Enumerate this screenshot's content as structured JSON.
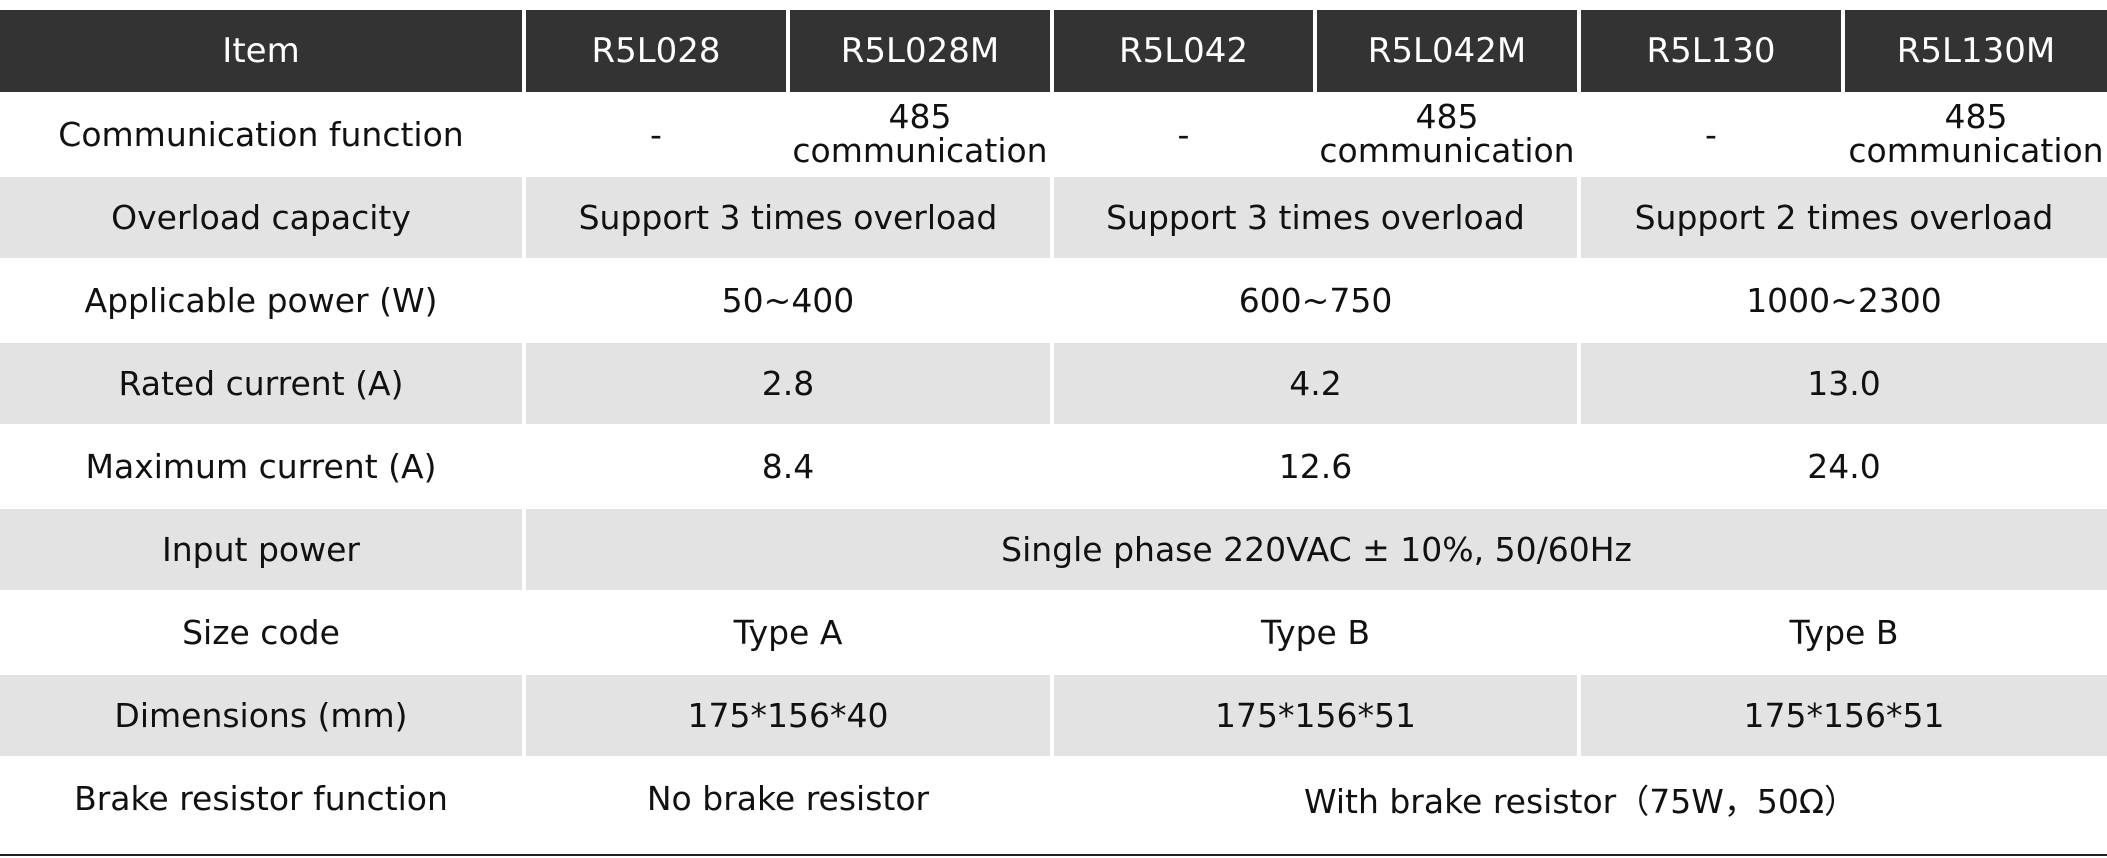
{
  "table": {
    "headers": [
      "Item",
      "R5L028",
      "R5L028M",
      "R5L042",
      "R5L042M",
      "R5L130",
      "R5L130M"
    ],
    "rows": {
      "communication": {
        "label": "Communication function",
        "values": [
          "-",
          "485",
          "communication",
          "-",
          "485",
          "communication",
          "-",
          "485",
          "communication"
        ]
      },
      "overload": {
        "label": "Overload capacity",
        "values": [
          "Support 3 times overload",
          "Support 3 times overload",
          "Support 2 times overload"
        ]
      },
      "applicable_power": {
        "label": "Applicable power (W)",
        "values": [
          "50~400",
          "600~750",
          "1000~2300"
        ]
      },
      "rated_current": {
        "label": "Rated current (A)",
        "values": [
          "2.8",
          "4.2",
          "13.0"
        ]
      },
      "max_current": {
        "label": "Maximum current (A)",
        "values": [
          "8.4",
          "12.6",
          "24.0"
        ]
      },
      "input_power": {
        "label": "Input power",
        "value": "Single phase 220VAC ± 10%, 50/60Hz"
      },
      "size_code": {
        "label": "Size code",
        "values": [
          "Type A",
          "Type B",
          "Type B"
        ]
      },
      "dimensions": {
        "label": "Dimensions (mm)",
        "values": [
          "175*156*40",
          "175*156*51",
          "175*156*51"
        ]
      },
      "brake_resistor": {
        "label": "Brake resistor function",
        "values": [
          "No brake resistor",
          "With brake resistor（75W，50Ω）"
        ]
      }
    }
  },
  "colors": {
    "header_bg": "#333333",
    "header_text": "#ffffff",
    "shaded_row": "#e3e3e3",
    "plain_row": "#ffffff",
    "rule": "#222222"
  }
}
